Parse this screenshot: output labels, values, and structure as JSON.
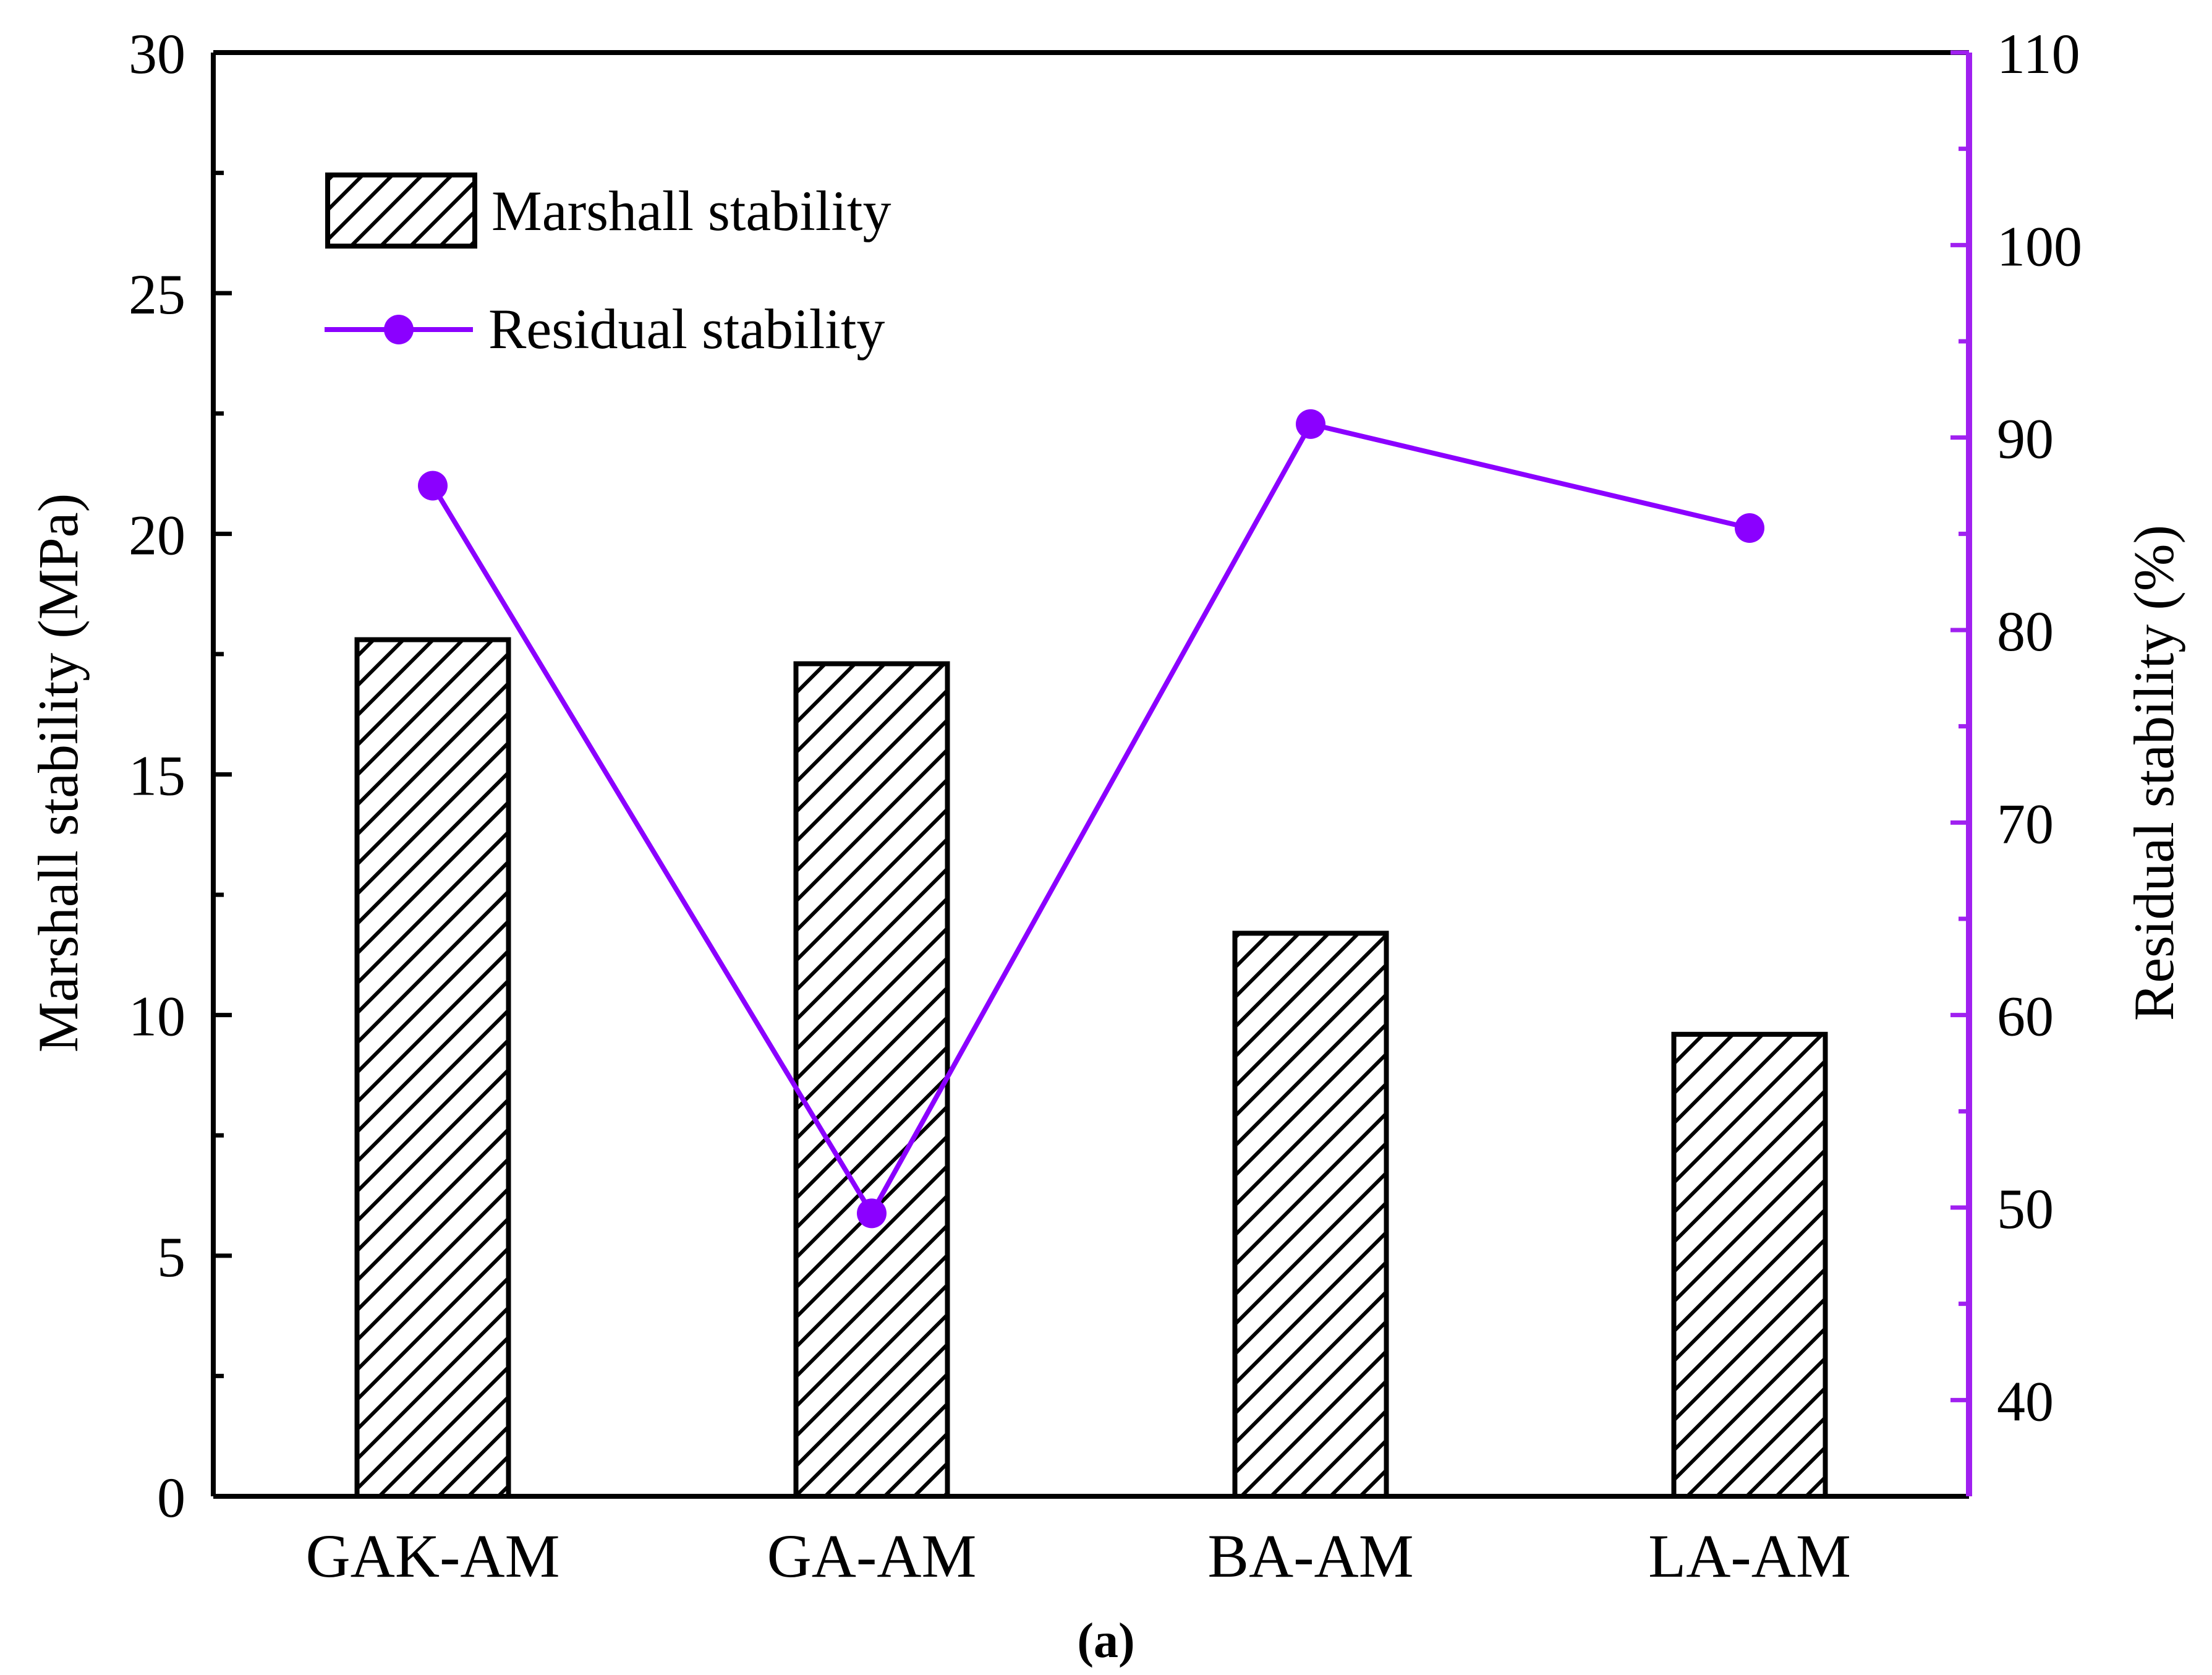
{
  "chart_data": {
    "type": "bar",
    "categories": [
      "GAK-AM",
      "GA-AM",
      "BA-AM",
      "LA-AM"
    ],
    "series": [
      {
        "name": "Marshall stability",
        "kind": "bar",
        "axis": "left",
        "values": [
          17.8,
          17.3,
          11.7,
          9.6
        ]
      },
      {
        "name": "Residual stability",
        "kind": "line",
        "axis": "right",
        "values": [
          87.5,
          49.7,
          90.7,
          85.3
        ]
      }
    ],
    "ylabel_left": "Marshall stability (MPa)",
    "ylabel_right": "Residual stability (%)",
    "ylim_left": [
      0,
      30
    ],
    "ylim_right": [
      35,
      110
    ],
    "yticks_left": [
      "0",
      "5",
      "10",
      "15",
      "20",
      "25",
      "30"
    ],
    "yticks_right": [
      "40",
      "50",
      "60",
      "70",
      "80",
      "90",
      "100",
      "110"
    ],
    "legend": [
      "Marshall stability",
      "Residual stability"
    ],
    "legend_position": "top-left",
    "caption": "(a)",
    "colors": {
      "bar_stroke": "#000000",
      "line": "#8b00ff",
      "right_axis": "#a020f0"
    }
  }
}
